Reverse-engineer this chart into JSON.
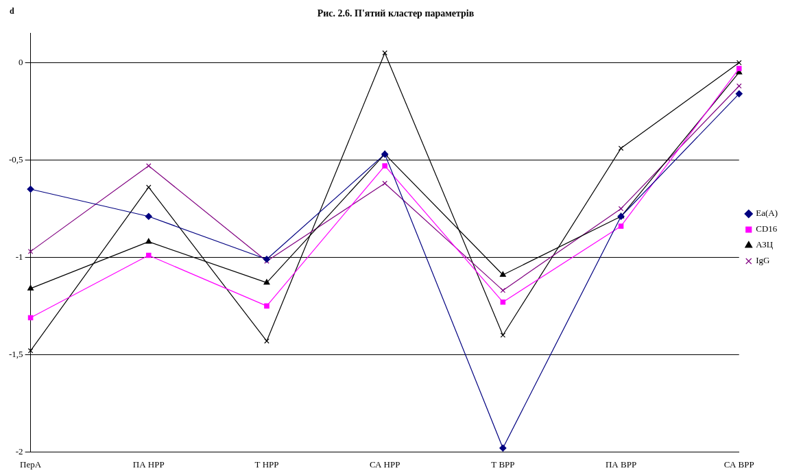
{
  "chart_data": {
    "type": "line",
    "title": "Рис. 2.6. П'ятий кластер параметрів",
    "ylabel": "d",
    "categories": [
      "ПерА",
      "ПА НРР",
      "Т НРР",
      "СА НРР",
      "Т ВРР",
      "ПА ВРР",
      "СА ВРР"
    ],
    "series": [
      {
        "name": "Ea(A)",
        "color": "#000080",
        "marker": "diamond",
        "values": [
          -0.65,
          -0.79,
          -1.01,
          -0.47,
          -1.98,
          -0.79,
          -0.16
        ]
      },
      {
        "name": "CD16",
        "color": "#ff00ff",
        "marker": "square",
        "values": [
          -1.31,
          -0.99,
          -1.25,
          -0.53,
          -1.23,
          -0.84,
          -0.03
        ]
      },
      {
        "name": "АЗЦ",
        "color": "#000000",
        "marker": "triangle",
        "values": [
          -1.16,
          -0.92,
          -1.13,
          -0.47,
          -1.09,
          -0.79,
          -0.05
        ]
      },
      {
        "name": "IgG",
        "color": "#800080",
        "marker": "cross",
        "values": [
          -0.97,
          -0.53,
          -1.02,
          -0.62,
          -1.17,
          -0.75,
          -0.12
        ]
      },
      {
        "color": "#000000",
        "marker": "cross",
        "values": [
          -1.48,
          -0.64,
          -1.43,
          0.05,
          -1.4,
          -0.44,
          0
        ]
      }
    ],
    "ylim": [
      -2,
      0.15
    ],
    "yticks": [
      {
        "value": -2,
        "label": "-2"
      },
      {
        "value": -1.5,
        "label": "-1,5"
      },
      {
        "value": -1,
        "label": "-1"
      },
      {
        "value": -0.5,
        "label": "-0,5"
      },
      {
        "value": 0,
        "label": "0"
      }
    ],
    "grid": "y",
    "legend": "right"
  }
}
